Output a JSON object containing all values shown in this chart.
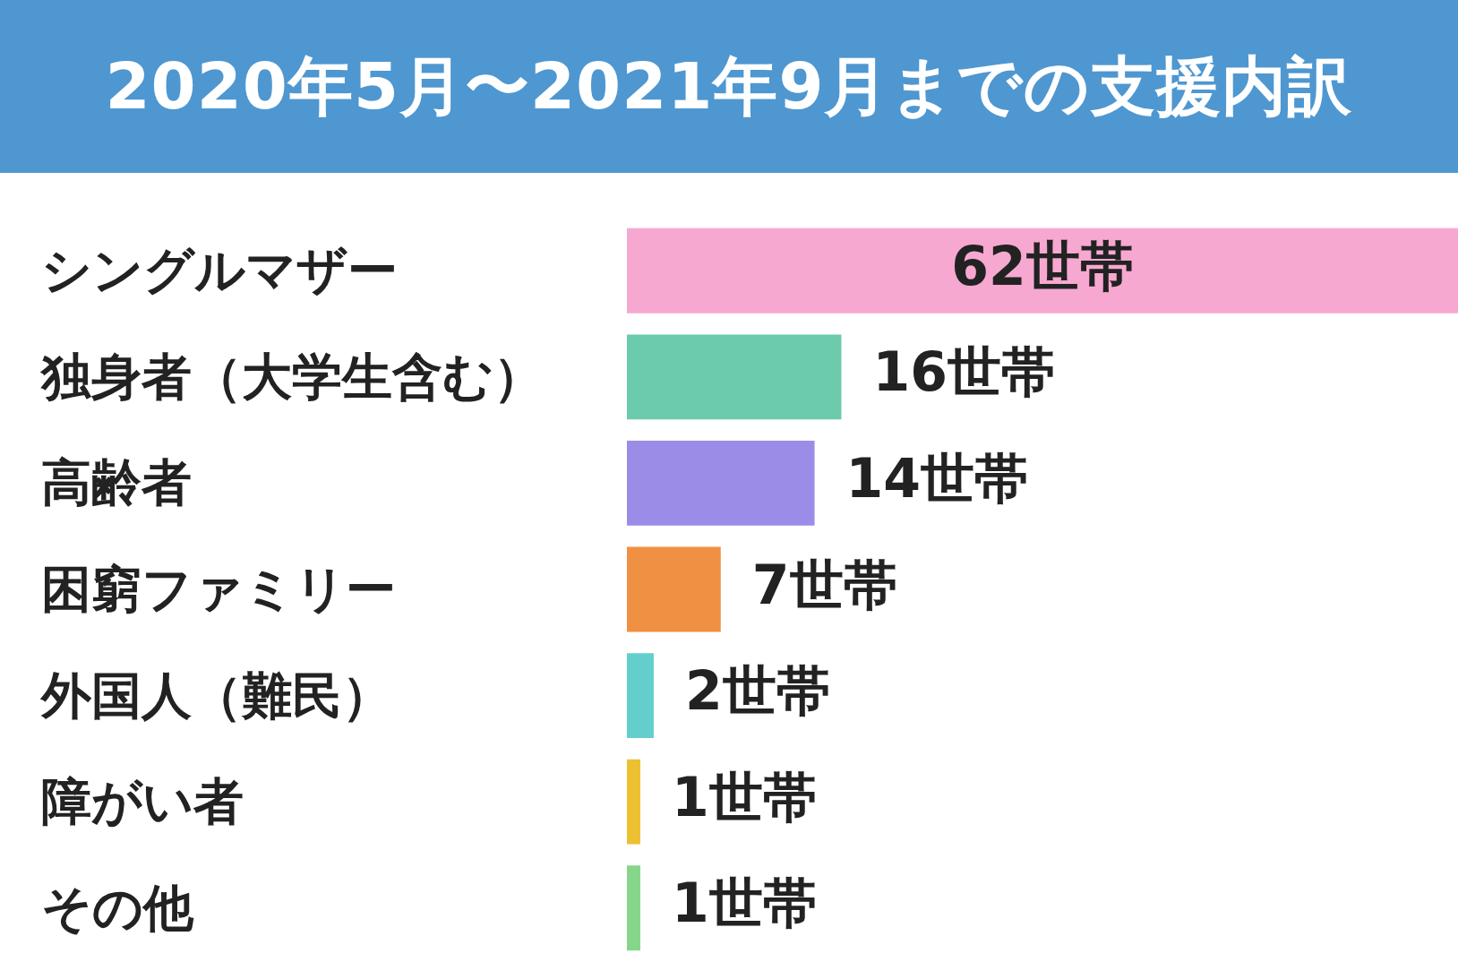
{
  "chart_data": {
    "type": "bar",
    "orientation": "horizontal",
    "title": "2020年5月〜2021年9月までの支援内訳",
    "categories": [
      "シングルマザー",
      "独身者（大学生含む）",
      "高齢者",
      "困窮ファミリー",
      "外国人（難民）",
      "障がい者",
      "その他"
    ],
    "values": [
      62,
      16,
      14,
      7,
      2,
      1,
      1
    ],
    "colors": [
      "#f7a8d0",
      "#6ccbad",
      "#9b8ce8",
      "#f09042",
      "#63cfcc",
      "#ecc030",
      "#86d68a"
    ],
    "value_labels": [
      "62世帯",
      "16世帯",
      "14世帯",
      "7世帯",
      "2世帯",
      "1世帯",
      "1世帯"
    ],
    "xlim": [
      0,
      62
    ],
    "grid": false,
    "legend": false,
    "tick_labels": "y"
  }
}
